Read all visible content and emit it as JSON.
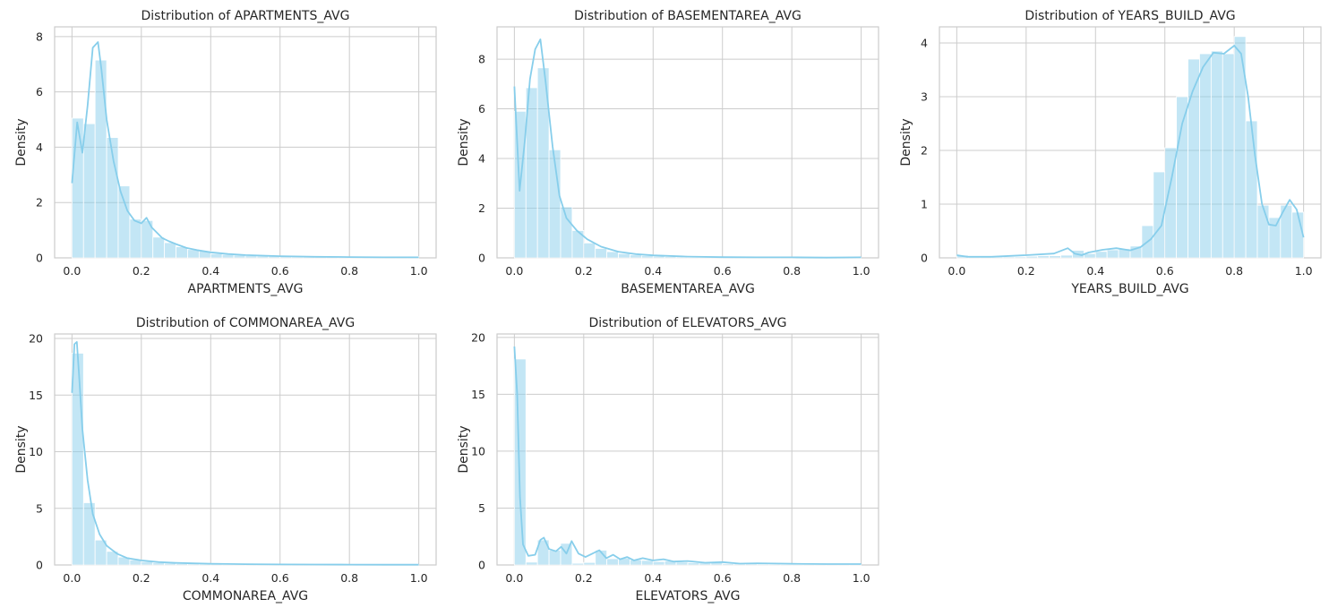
{
  "chart_data": [
    {
      "type": "histogram",
      "title": "Distribution of APARTMENTS_AVG",
      "xlabel": "APARTMENTS_AVG",
      "ylabel": "Density",
      "xlim": [
        -0.05,
        1.05
      ],
      "ylim": [
        0,
        8.35
      ],
      "xticks": [
        "0.0",
        "0.2",
        "0.4",
        "0.6",
        "0.8",
        "1.0"
      ],
      "yticks": [
        "0",
        "2",
        "4",
        "6",
        "8"
      ],
      "grid": true,
      "color": "#87ceeb",
      "bin_edges_range": [
        0,
        1
      ],
      "bins": 30,
      "density": [
        5.05,
        4.85,
        7.15,
        4.35,
        2.6,
        1.4,
        1.35,
        0.75,
        0.55,
        0.4,
        0.3,
        0.25,
        0.15,
        0.12,
        0.1,
        0.08,
        0.07,
        0.06,
        0.05,
        0.04,
        0.04,
        0.03,
        0.03,
        0.02,
        0.02,
        0.02,
        0.02,
        0.01,
        0.01,
        0.05
      ],
      "kde_x": [
        0,
        0.015,
        0.03,
        0.045,
        0.06,
        0.075,
        0.085,
        0.1,
        0.12,
        0.14,
        0.16,
        0.18,
        0.2,
        0.215,
        0.23,
        0.26,
        0.28,
        0.3,
        0.33,
        0.36,
        0.4,
        0.45,
        0.5,
        0.6,
        0.7,
        0.8,
        0.9,
        1.0
      ],
      "kde_y": [
        2.7,
        4.9,
        3.8,
        5.5,
        7.6,
        7.8,
        6.8,
        5.0,
        3.5,
        2.4,
        1.7,
        1.35,
        1.25,
        1.45,
        1.1,
        0.72,
        0.6,
        0.5,
        0.36,
        0.28,
        0.2,
        0.14,
        0.1,
        0.06,
        0.04,
        0.03,
        0.02,
        0.02
      ]
    },
    {
      "type": "histogram",
      "title": "Distribution of BASEMENTAREA_AVG",
      "xlabel": "BASEMENTAREA_AVG",
      "ylabel": "Density",
      "xlim": [
        -0.05,
        1.05
      ],
      "ylim": [
        0,
        9.3
      ],
      "xticks": [
        "0.0",
        "0.2",
        "0.4",
        "0.6",
        "0.8",
        "1.0"
      ],
      "yticks": [
        "0",
        "2",
        "4",
        "6",
        "8"
      ],
      "grid": true,
      "color": "#87ceeb",
      "bin_edges_range": [
        0,
        1
      ],
      "bins": 30,
      "density": [
        5.9,
        6.85,
        7.65,
        4.35,
        2.05,
        1.1,
        0.6,
        0.38,
        0.25,
        0.17,
        0.12,
        0.09,
        0.07,
        0.05,
        0.04,
        0.03,
        0.03,
        0.02,
        0.02,
        0.02,
        0.01,
        0.01,
        0.01,
        0.01,
        0.01,
        0.01,
        0.01,
        0.01,
        0.01,
        0.02
      ],
      "kde_x": [
        0,
        0.015,
        0.03,
        0.045,
        0.06,
        0.075,
        0.09,
        0.11,
        0.13,
        0.15,
        0.18,
        0.21,
        0.25,
        0.3,
        0.35,
        0.4,
        0.5,
        0.6,
        0.7,
        0.8,
        0.9,
        1.0
      ],
      "kde_y": [
        6.9,
        2.7,
        4.7,
        7.2,
        8.4,
        8.8,
        7.1,
        4.5,
        2.5,
        1.6,
        1.1,
        0.75,
        0.45,
        0.25,
        0.15,
        0.1,
        0.05,
        0.03,
        0.02,
        0.02,
        0.01,
        0.02
      ]
    },
    {
      "type": "histogram",
      "title": "Distribution of YEARS_BUILD_AVG",
      "xlabel": "YEARS_BUILD_AVG",
      "ylabel": "Density",
      "xlim": [
        -0.05,
        1.05
      ],
      "ylim": [
        0,
        4.3
      ],
      "xticks": [
        "0.0",
        "0.2",
        "0.4",
        "0.6",
        "0.8",
        "1.0"
      ],
      "yticks": [
        "0",
        "1",
        "2",
        "3",
        "4"
      ],
      "grid": true,
      "color": "#87ceeb",
      "bin_edges_range": [
        0,
        1
      ],
      "bins": 30,
      "density": [
        0.05,
        0.02,
        0.02,
        0.02,
        0.02,
        0.02,
        0.03,
        0.04,
        0.04,
        0.05,
        0.14,
        0.08,
        0.12,
        0.15,
        0.17,
        0.22,
        0.6,
        1.6,
        2.05,
        3.0,
        3.7,
        3.8,
        3.85,
        3.8,
        4.12,
        2.55,
        0.98,
        0.75,
        0.98,
        0.85
      ],
      "kde_x": [
        0,
        0.03,
        0.1,
        0.2,
        0.28,
        0.32,
        0.34,
        0.36,
        0.38,
        0.42,
        0.46,
        0.5,
        0.53,
        0.56,
        0.59,
        0.62,
        0.65,
        0.68,
        0.71,
        0.74,
        0.77,
        0.8,
        0.82,
        0.84,
        0.86,
        0.88,
        0.9,
        0.92,
        0.94,
        0.96,
        0.98,
        1.0
      ],
      "kde_y": [
        0.05,
        0.02,
        0.02,
        0.05,
        0.08,
        0.18,
        0.08,
        0.05,
        0.1,
        0.15,
        0.18,
        0.14,
        0.2,
        0.35,
        0.6,
        1.5,
        2.5,
        3.1,
        3.55,
        3.82,
        3.8,
        3.95,
        3.8,
        3.0,
        1.9,
        1.0,
        0.62,
        0.6,
        0.85,
        1.08,
        0.9,
        0.38
      ]
    },
    {
      "type": "histogram",
      "title": "Distribution of COMMONAREA_AVG",
      "xlabel": "COMMONAREA_AVG",
      "ylabel": "Density",
      "xlim": [
        -0.05,
        1.05
      ],
      "ylim": [
        0,
        20.4
      ],
      "xticks": [
        "0.0",
        "0.2",
        "0.4",
        "0.6",
        "0.8",
        "1.0"
      ],
      "yticks": [
        "0",
        "5",
        "10",
        "15",
        "20"
      ],
      "grid": true,
      "color": "#87ceeb",
      "bin_edges_range": [
        0,
        1
      ],
      "bins": 30,
      "density": [
        18.7,
        5.5,
        2.2,
        1.2,
        0.7,
        0.45,
        0.3,
        0.2,
        0.15,
        0.12,
        0.1,
        0.08,
        0.07,
        0.06,
        0.05,
        0.04,
        0.04,
        0.03,
        0.03,
        0.03,
        0.02,
        0.02,
        0.02,
        0.02,
        0.02,
        0.02,
        0.02,
        0.01,
        0.01,
        0.03
      ],
      "kde_x": [
        0,
        0.007,
        0.014,
        0.02,
        0.03,
        0.045,
        0.06,
        0.08,
        0.1,
        0.13,
        0.16,
        0.2,
        0.25,
        0.3,
        0.4,
        0.5,
        0.6,
        0.7,
        0.8,
        0.9,
        1.0
      ],
      "kde_y": [
        15.2,
        19.5,
        19.7,
        17.0,
        12.0,
        7.5,
        4.5,
        2.7,
        1.7,
        1.0,
        0.6,
        0.4,
        0.25,
        0.18,
        0.1,
        0.07,
        0.05,
        0.04,
        0.03,
        0.02,
        0.02
      ]
    },
    {
      "type": "histogram",
      "title": "Distribution of ELEVATORS_AVG",
      "xlabel": "ELEVATORS_AVG",
      "ylabel": "Density",
      "xlim": [
        -0.05,
        1.05
      ],
      "ylim": [
        0,
        20.3
      ],
      "xticks": [
        "0.0",
        "0.2",
        "0.4",
        "0.6",
        "0.8",
        "1.0"
      ],
      "yticks": [
        "0",
        "5",
        "10",
        "15",
        "20"
      ],
      "grid": true,
      "color": "#87ceeb",
      "bin_edges_range": [
        0,
        1
      ],
      "bins": 30,
      "density": [
        18.1,
        0.25,
        2.2,
        1.3,
        1.9,
        0.15,
        0.22,
        1.3,
        0.55,
        0.6,
        0.45,
        0.4,
        0.3,
        0.35,
        0.25,
        0.2,
        0.18,
        0.2,
        0.12,
        0.1,
        0.1,
        0.08,
        0.07,
        0.06,
        0.05,
        0.05,
        0.04,
        0.03,
        0.03,
        0.05
      ],
      "kde_x": [
        0,
        0.008,
        0.016,
        0.025,
        0.04,
        0.06,
        0.075,
        0.085,
        0.1,
        0.12,
        0.135,
        0.15,
        0.165,
        0.185,
        0.205,
        0.225,
        0.245,
        0.265,
        0.285,
        0.305,
        0.325,
        0.345,
        0.37,
        0.4,
        0.43,
        0.46,
        0.5,
        0.55,
        0.6,
        0.65,
        0.7,
        0.8,
        0.9,
        1.0
      ],
      "kde_y": [
        19.2,
        15.0,
        6.0,
        1.8,
        0.8,
        0.9,
        2.2,
        2.4,
        1.4,
        1.2,
        1.6,
        1.0,
        2.1,
        1.0,
        0.7,
        1.0,
        1.3,
        0.6,
        0.9,
        0.5,
        0.7,
        0.4,
        0.6,
        0.4,
        0.5,
        0.3,
        0.35,
        0.2,
        0.25,
        0.12,
        0.15,
        0.1,
        0.08,
        0.08
      ]
    }
  ]
}
